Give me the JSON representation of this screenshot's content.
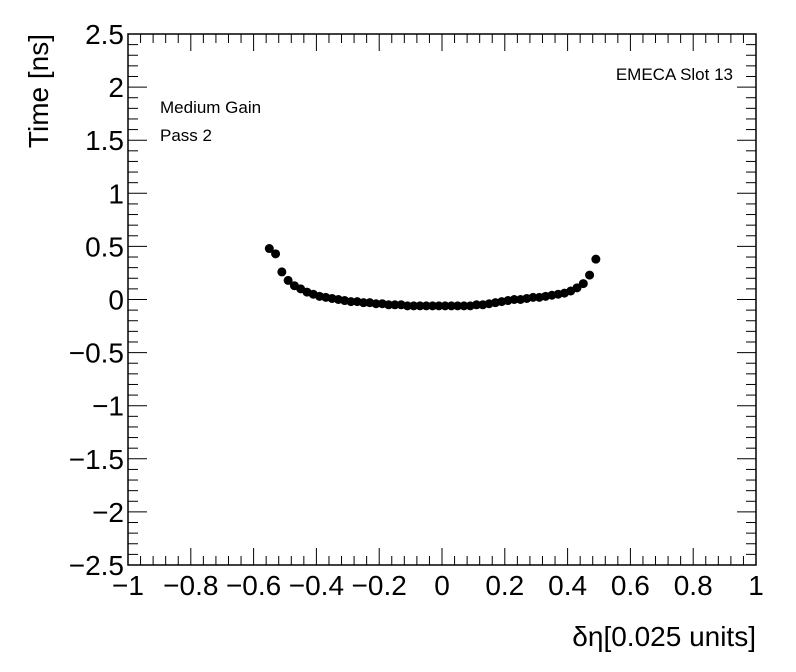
{
  "chart_data": {
    "type": "scatter",
    "xlabel": "δη[0.025 units]",
    "ylabel": "Time [ns]",
    "xlim": [
      -1,
      1
    ],
    "ylim": [
      -2.5,
      2.5
    ],
    "x_ticks": [
      -1,
      -0.8,
      -0.6,
      -0.4,
      -0.2,
      0,
      0.2,
      0.4,
      0.6,
      0.8,
      1
    ],
    "x_tick_labels": [
      "−1",
      "−0.8",
      "−0.6",
      "−0.4",
      "−0.2",
      "0",
      "0.2",
      "0.4",
      "0.6",
      "0.8",
      "1"
    ],
    "y_ticks": [
      -2.5,
      -2,
      -1.5,
      -1,
      -0.5,
      0,
      0.5,
      1,
      1.5,
      2,
      2.5
    ],
    "y_tick_labels": [
      "−2.5",
      "−2",
      "−1.5",
      "−1",
      "−0.5",
      "0",
      "0.5",
      "1",
      "1.5",
      "2",
      "2.5"
    ],
    "grid": false,
    "annotations": {
      "gain": "Medium Gain",
      "pass": "Pass 2",
      "slot": "EMECA Slot 13"
    },
    "marker_color": "#000000",
    "series": [
      {
        "x": [
          -0.55,
          -0.53,
          -0.51,
          -0.49,
          -0.47,
          -0.45,
          -0.43,
          -0.41,
          -0.39,
          -0.37,
          -0.35,
          -0.33,
          -0.31,
          -0.29,
          -0.27,
          -0.25,
          -0.23,
          -0.21,
          -0.19,
          -0.17,
          -0.15,
          -0.13,
          -0.11,
          -0.09,
          -0.07,
          -0.05,
          -0.03,
          -0.01,
          0.01,
          0.03,
          0.05,
          0.07,
          0.09,
          0.11,
          0.13,
          0.15,
          0.17,
          0.19,
          0.21,
          0.23,
          0.25,
          0.27,
          0.29,
          0.31,
          0.33,
          0.35,
          0.37,
          0.39,
          0.41,
          0.43,
          0.45,
          0.47,
          0.49
        ],
        "y": [
          0.48,
          0.43,
          0.26,
          0.18,
          0.13,
          0.1,
          0.07,
          0.05,
          0.03,
          0.02,
          0.01,
          0.0,
          -0.01,
          -0.02,
          -0.02,
          -0.03,
          -0.03,
          -0.04,
          -0.04,
          -0.05,
          -0.05,
          -0.05,
          -0.06,
          -0.06,
          -0.06,
          -0.06,
          -0.06,
          -0.06,
          -0.06,
          -0.06,
          -0.06,
          -0.06,
          -0.06,
          -0.05,
          -0.05,
          -0.04,
          -0.03,
          -0.02,
          -0.01,
          0.0,
          0.0,
          0.01,
          0.02,
          0.02,
          0.03,
          0.04,
          0.05,
          0.06,
          0.08,
          0.11,
          0.15,
          0.23,
          0.38
        ]
      }
    ]
  }
}
